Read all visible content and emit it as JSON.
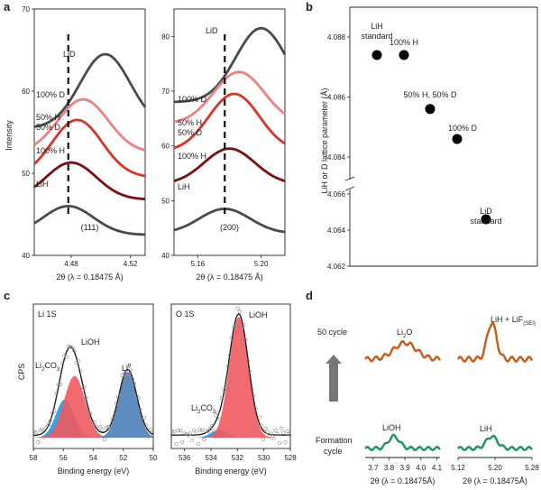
{
  "panels": {
    "a": "a",
    "b": "b",
    "c": "c",
    "d": "d"
  },
  "chart_data": [
    {
      "panel": "a",
      "type": "line",
      "ylabel": "Intensity",
      "subplots": [
        {
          "xlabel": "2θ (λ = 0.18475 Å)",
          "reflection": "(111)",
          "xlim": [
            4.455,
            4.53
          ],
          "ylim": [
            40,
            70
          ],
          "xticks": [
            "4.48",
            "4.52"
          ],
          "xtick_values": [
            4.48,
            4.52
          ],
          "yticks": [
            40,
            50,
            60,
            70
          ],
          "dashed_x": 4.478,
          "series": [
            {
              "label": "LiD",
              "color": "#4a4a4a",
              "center": 4.503,
              "base": 55.5,
              "amp": 9.0,
              "width": 0.017
            },
            {
              "label": "100% D",
              "color": "#f08080",
              "center": 4.488,
              "base": 52.5,
              "amp": 6.5,
              "width": 0.017
            },
            {
              "label": "50% H\n50% D",
              "color": "#d9342b",
              "center": 4.484,
              "base": 49.5,
              "amp": 7.0,
              "width": 0.017
            },
            {
              "label": "100% H",
              "color": "#7a0f14",
              "center": 4.48,
              "base": 46.8,
              "amp": 4.5,
              "width": 0.017
            },
            {
              "label": "LiH",
              "color": "#4a4a4a",
              "center": 4.478,
              "base": 42.5,
              "amp": 3.5,
              "width": 0.017
            }
          ]
        },
        {
          "xlabel": "2θ (λ = 0.18475 Å)",
          "reflection": "(200)",
          "xlim": [
            5.145,
            5.215
          ],
          "ylim": [
            40,
            85
          ],
          "xticks": [
            "5.16",
            "5.20"
          ],
          "xtick_values": [
            5.16,
            5.2
          ],
          "yticks": [
            40,
            50,
            60,
            70,
            80
          ],
          "dashed_x": 5.177,
          "series": [
            {
              "label": "LiD",
              "color": "#4a4a4a",
              "center": 5.2,
              "base": 68,
              "amp": 13.5,
              "width": 0.016
            },
            {
              "label": "100% D",
              "color": "#f08080",
              "center": 5.186,
              "base": 64,
              "amp": 9.5,
              "width": 0.016
            },
            {
              "label": "50% H\n50% D",
              "color": "#d9342b",
              "center": 5.183,
              "base": 59,
              "amp": 10.5,
              "width": 0.016
            },
            {
              "label": "100% H",
              "color": "#7a0f14",
              "center": 5.18,
              "base": 53,
              "amp": 6.5,
              "width": 0.016
            },
            {
              "label": "LiH",
              "color": "#4a4a4a",
              "center": 5.177,
              "base": 44,
              "amp": 4.5,
              "width": 0.016
            }
          ]
        }
      ]
    },
    {
      "panel": "b",
      "type": "scatter",
      "ylabel": "LiH or D lattice parameter (Å)",
      "yticks_upper": [
        "4.084",
        "4.086",
        "4.088"
      ],
      "yticks_lower": [
        "4.062",
        "4.064",
        "4.066"
      ],
      "points": [
        {
          "label": "LiH\nstandard",
          "y": 4.0874
        },
        {
          "label": "100% H",
          "y": 4.0874
        },
        {
          "label": "50% H, 50% D",
          "y": 4.0856
        },
        {
          "label": "100% D",
          "y": 4.0846
        },
        {
          "label": "LiD\nstandard",
          "y": 4.0646
        }
      ]
    },
    {
      "panel": "c",
      "type": "area",
      "ylabel": "CPS",
      "subplots": [
        {
          "title": "Li 1S",
          "xlabel": "Binding energy (eV)",
          "xlim": [
            58,
            50
          ],
          "xticks": [
            58,
            56,
            54,
            52,
            50
          ],
          "components": [
            {
              "label": "Li2CO3",
              "color": "#1a9be8",
              "center": 55.9,
              "amp": 0.36,
              "width": 0.6
            },
            {
              "label": "LiOH",
              "color": "#f05a5f",
              "center": 55.25,
              "amp": 0.58,
              "width": 0.7
            },
            {
              "label": "Li0",
              "color": "#4d80b8",
              "center": 51.7,
              "amp": 0.62,
              "width": 0.6
            }
          ]
        },
        {
          "title": "O 1S",
          "xlabel": "Binding energy (eV)",
          "xlim": [
            537,
            528
          ],
          "xticks": [
            536,
            534,
            532,
            530,
            528
          ],
          "components": [
            {
              "label": "Li2CO3",
              "color": "#1a9be8",
              "center": 533.4,
              "amp": 0.06,
              "width": 0.6
            },
            {
              "label": "LiOH",
              "color": "#f05a5f",
              "center": 531.9,
              "amp": 0.93,
              "width": 0.72
            }
          ]
        }
      ]
    },
    {
      "panel": "d",
      "type": "line",
      "row_labels": [
        "50 cycle",
        "Formation\ncycle"
      ],
      "subplots": [
        {
          "xlabel": "2θ (λ = 0.18475Å)",
          "xlim": [
            3.65,
            4.12
          ],
          "xticks": [
            3.7,
            3.8,
            3.9,
            4.0,
            4.1
          ],
          "xtick_labels": [
            "3.7",
            "3.8",
            "3.9",
            "4.0",
            "4.1"
          ],
          "top": {
            "label": "Li2O",
            "color": "#cc5a14",
            "center": 3.9,
            "amp": 0.45,
            "width": 0.07
          },
          "bottom": {
            "label": "LiOH",
            "color": "#1b9460",
            "center": 3.83,
            "amp": 0.45,
            "width": 0.035
          }
        },
        {
          "xlabel": "2θ (λ = 0.18475Å)",
          "xlim": [
            5.12,
            5.28
          ],
          "xticks": [
            5.12,
            5.2,
            5.28
          ],
          "xtick_labels": [
            "5.12",
            "5.20",
            "5.28"
          ],
          "top": {
            "label": "LiH + LiF(SEI)",
            "color": "#cc5a14",
            "center": 5.193,
            "amp": 0.9,
            "width": 0.01
          },
          "bottom": {
            "label": "LiH",
            "color": "#1b9460",
            "center": 5.193,
            "amp": 0.45,
            "width": 0.012
          }
        }
      ]
    }
  ]
}
